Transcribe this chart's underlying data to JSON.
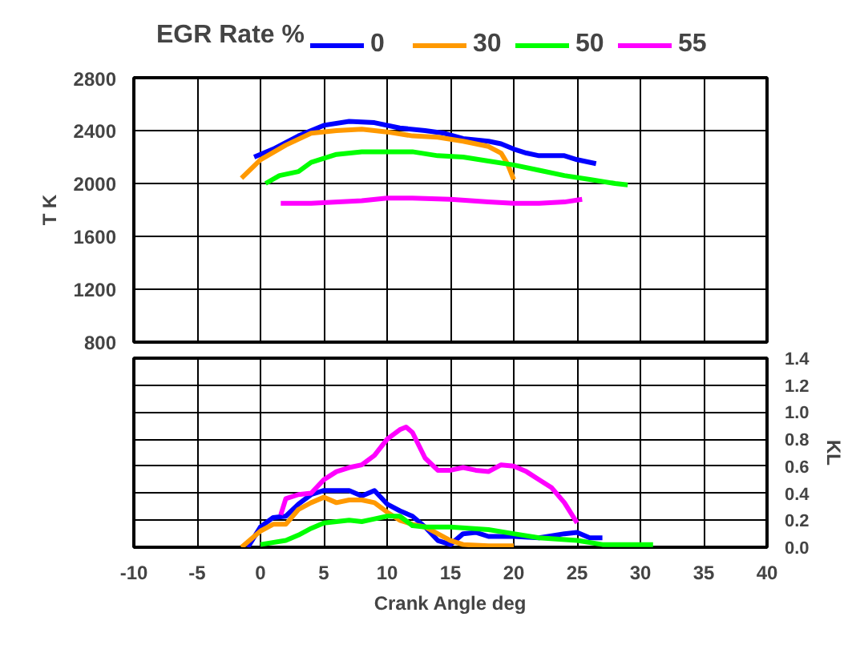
{
  "chart_data": [
    {
      "type": "line",
      "ylabel": "T K",
      "legend_title": "EGR Rate %",
      "legend": "top",
      "grid": true,
      "tick_labels": "y",
      "line_style": "solid",
      "marker": "none",
      "xlim": [
        -10,
        40
      ],
      "xticks": [
        -10,
        -5,
        0,
        5,
        10,
        15,
        20,
        25,
        30,
        35,
        40
      ],
      "ylim": [
        800,
        2800
      ],
      "yticks": [
        800,
        1200,
        1600,
        2000,
        2400,
        2800
      ],
      "series": [
        {
          "name": "0",
          "color": "#0000ff",
          "x": [
            -0.5,
            1,
            3,
            5,
            7,
            9,
            11,
            13,
            14.5,
            16,
            18,
            19,
            20,
            21,
            22,
            24,
            25,
            26.5
          ],
          "values": [
            2200,
            2260,
            2360,
            2440,
            2470,
            2460,
            2420,
            2400,
            2380,
            2340,
            2320,
            2300,
            2260,
            2230,
            2210,
            2210,
            2180,
            2150
          ]
        },
        {
          "name": "30",
          "color": "#ff9900",
          "x": [
            -1.5,
            0,
            2,
            4,
            6,
            8,
            10,
            12,
            14,
            16,
            18,
            19,
            19.5,
            20
          ],
          "values": [
            2040,
            2180,
            2290,
            2380,
            2400,
            2410,
            2390,
            2360,
            2350,
            2320,
            2280,
            2230,
            2150,
            2030
          ]
        },
        {
          "name": "50",
          "color": "#00ff00",
          "x": [
            0.4,
            1.5,
            3,
            4,
            6,
            8,
            10,
            12,
            14,
            16,
            18,
            20,
            22,
            24,
            26,
            28,
            29
          ],
          "values": [
            2000,
            2060,
            2090,
            2160,
            2220,
            2240,
            2240,
            2240,
            2210,
            2200,
            2170,
            2140,
            2100,
            2060,
            2030,
            2000,
            1990
          ]
        },
        {
          "name": "55",
          "color": "#ff00ff",
          "x": [
            1.6,
            4,
            8,
            10,
            12,
            15,
            18,
            20,
            22,
            24,
            25.4
          ],
          "values": [
            1850,
            1850,
            1870,
            1890,
            1890,
            1880,
            1860,
            1850,
            1850,
            1860,
            1880
          ]
        }
      ]
    },
    {
      "type": "line",
      "xlabel": "Crank Angle deg",
      "y2label": "KL",
      "grid": true,
      "line_style": "solid",
      "marker": "none",
      "xlim": [
        -10,
        40
      ],
      "xticks": [
        -10,
        -5,
        0,
        5,
        10,
        15,
        20,
        25,
        30,
        35,
        40
      ],
      "y2lim": [
        0,
        1.4
      ],
      "y2ticks": [
        {
          "value": 0,
          "label": "0.0"
        },
        {
          "value": 0.2,
          "label": "0.2"
        },
        {
          "value": 0.4,
          "label": "0.4"
        },
        {
          "value": 0.6,
          "label": "0.6"
        },
        {
          "value": 0.8,
          "label": "0.8"
        },
        {
          "value": 1,
          "label": "1.0"
        },
        {
          "value": 1.2,
          "label": "1.2"
        },
        {
          "value": 1.4,
          "label": "1.4"
        }
      ],
      "series": [
        {
          "color": "#0000ff",
          "axis": "y2",
          "x": [
            -1,
            0,
            1,
            2,
            3,
            4,
            5,
            6,
            7,
            8,
            9,
            10,
            11,
            12,
            13,
            14,
            15,
            16,
            17,
            18,
            20,
            22,
            24,
            25,
            26,
            27
          ],
          "values": [
            0.0,
            0.15,
            0.22,
            0.23,
            0.32,
            0.39,
            0.42,
            0.42,
            0.42,
            0.38,
            0.42,
            0.32,
            0.27,
            0.23,
            0.15,
            0.05,
            0.02,
            0.1,
            0.11,
            0.08,
            0.08,
            0.07,
            0.1,
            0.11,
            0.07,
            0.07
          ]
        },
        {
          "color": "#ff9900",
          "axis": "y2",
          "x": [
            -1.5,
            0,
            1,
            2,
            3,
            4,
            5,
            6,
            7,
            8,
            9,
            10,
            11,
            12,
            13,
            14,
            15,
            16,
            18,
            20
          ],
          "values": [
            0.0,
            0.12,
            0.17,
            0.17,
            0.28,
            0.33,
            0.37,
            0.33,
            0.35,
            0.35,
            0.33,
            0.26,
            0.2,
            0.17,
            0.15,
            0.1,
            0.05,
            0.02,
            0.01,
            0.01
          ]
        },
        {
          "color": "#00ff00",
          "axis": "y2",
          "x": [
            0,
            2,
            3,
            4,
            5,
            7,
            8,
            9,
            10,
            11,
            12,
            13,
            15,
            18,
            20,
            22,
            25,
            27,
            31
          ],
          "values": [
            0.02,
            0.05,
            0.09,
            0.14,
            0.18,
            0.2,
            0.19,
            0.21,
            0.23,
            0.23,
            0.16,
            0.15,
            0.15,
            0.13,
            0.1,
            0.07,
            0.05,
            0.02,
            0.02
          ]
        },
        {
          "color": "#ff00ff",
          "axis": "y2",
          "x": [
            1.6,
            2,
            3,
            4,
            5,
            6,
            7,
            8,
            9,
            10,
            11,
            11.5,
            12,
            13,
            14,
            15,
            16,
            17,
            18,
            19,
            20,
            21,
            22,
            23,
            24,
            25
          ],
          "values": [
            0.24,
            0.36,
            0.39,
            0.4,
            0.5,
            0.56,
            0.59,
            0.61,
            0.68,
            0.8,
            0.87,
            0.89,
            0.85,
            0.66,
            0.57,
            0.57,
            0.59,
            0.57,
            0.56,
            0.61,
            0.6,
            0.56,
            0.5,
            0.44,
            0.33,
            0.18
          ]
        }
      ]
    }
  ]
}
